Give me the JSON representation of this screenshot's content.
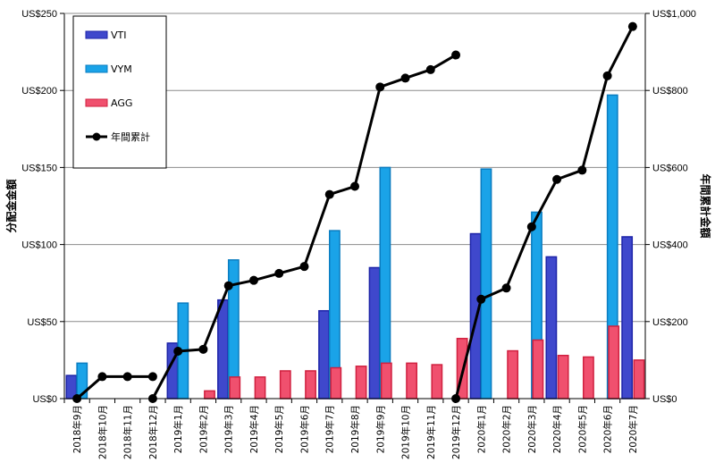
{
  "chart_data": {
    "type": "bar",
    "categories": [
      "2018年9月",
      "2018年10月",
      "2018年11月",
      "2018年12月",
      "2019年1月",
      "2019年2月",
      "2019年3月",
      "2019年4月",
      "2019年5月",
      "2019年6月",
      "2019年7月",
      "2019年8月",
      "2019年9月",
      "2019年10月",
      "2019年11月",
      "2019年12月",
      "2020年1月",
      "2020年2月",
      "2020年3月",
      "2020年4月",
      "2020年5月",
      "2020年6月",
      "2020年7月"
    ],
    "series": [
      {
        "name": "VTI",
        "color": "#3f48cc",
        "values": [
          15,
          null,
          null,
          null,
          36,
          null,
          64,
          null,
          null,
          null,
          57,
          null,
          85,
          null,
          null,
          null,
          107,
          null,
          null,
          92,
          null,
          null,
          105
        ]
      },
      {
        "name": "VYM",
        "color": "#1aa3e8",
        "values": [
          23,
          null,
          null,
          null,
          62,
          null,
          90,
          null,
          null,
          null,
          109,
          null,
          150,
          null,
          null,
          null,
          149,
          null,
          121,
          null,
          null,
          197,
          null
        ]
      },
      {
        "name": "AGG",
        "color": "#f0506e",
        "values": [
          null,
          null,
          null,
          null,
          null,
          5,
          14,
          14,
          18,
          18,
          20,
          21,
          23,
          23,
          22,
          39,
          null,
          31,
          38,
          28,
          27,
          47,
          25
        ]
      }
    ],
    "line_series": {
      "name": "年間累計",
      "color": "#000000",
      "axis": "right",
      "segments": [
        {
          "start": 0,
          "values": [
            0,
            57,
            57,
            57
          ]
        },
        {
          "start": 3,
          "values": [
            0,
            123,
            128,
            293,
            307,
            325,
            343,
            530,
            551,
            809,
            832,
            854,
            892
          ]
        },
        {
          "start": 15,
          "values": [
            0,
            258,
            287,
            446,
            569,
            593,
            838,
            966
          ]
        }
      ]
    },
    "ylabel": "分配金金額",
    "y2label": "年間累計金額",
    "ylim": [
      0,
      250
    ],
    "y2lim": [
      0,
      1000
    ],
    "yticks": [
      "US$0",
      "US$50",
      "US$100",
      "US$150",
      "US$200",
      "US$250"
    ],
    "y2ticks": [
      "US$0",
      "US$200",
      "US$400",
      "US$600",
      "US$800",
      "US$1,000"
    ],
    "grid": true,
    "legend_position": "top-left"
  }
}
